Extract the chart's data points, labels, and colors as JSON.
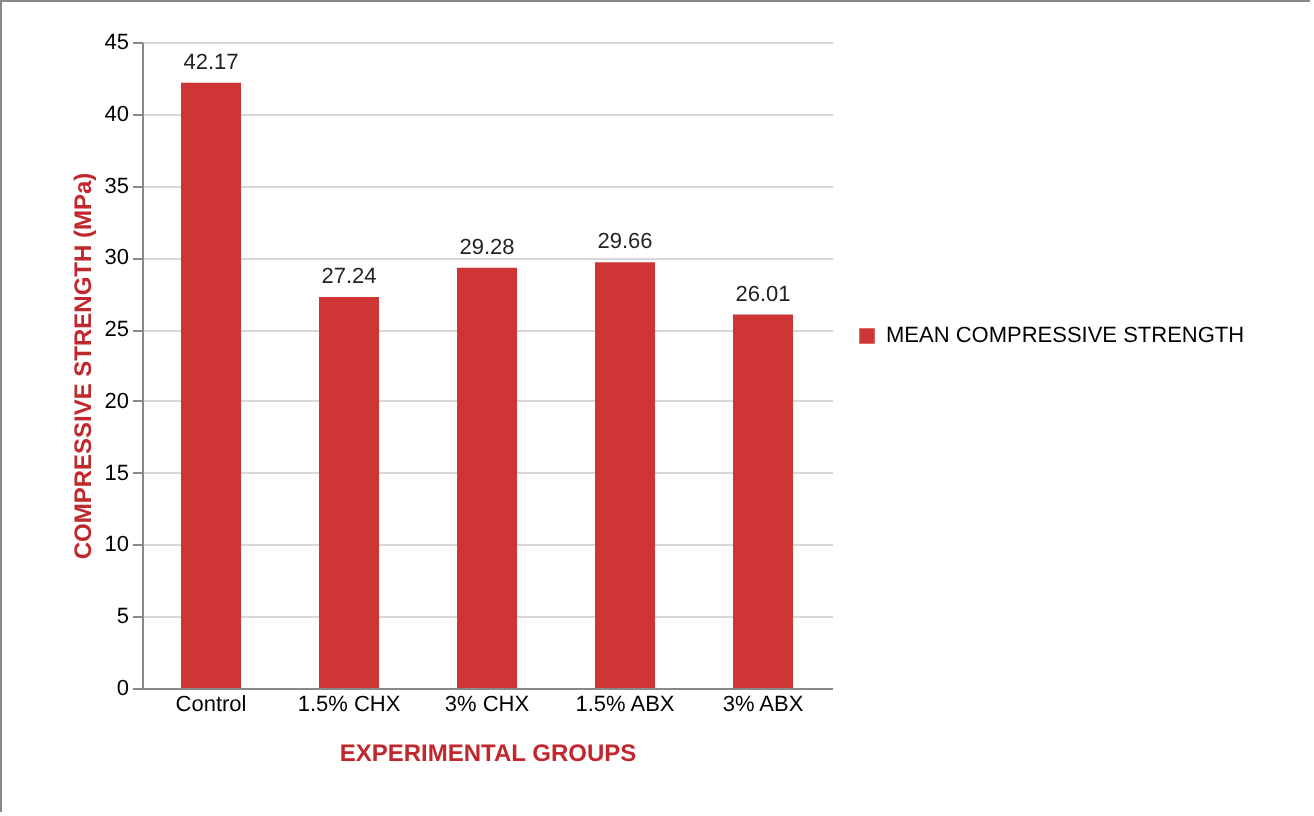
{
  "chart_data": {
    "type": "bar",
    "xlabel": "EXPERIMENTAL GROUPS",
    "ylabel": "COMPRESSIVE STRENGTH (MPa)",
    "categories": [
      "Control",
      "1.5% CHX",
      "3% CHX",
      "1.5% ABX",
      "3% ABX"
    ],
    "series": [
      {
        "name": "MEAN COMPRESSIVE STRENGTH",
        "color": "#d03535",
        "values": [
          42.17,
          27.24,
          29.28,
          29.66,
          26.01
        ]
      }
    ],
    "ylim": [
      0,
      45
    ],
    "yticks": [
      0,
      5,
      10,
      15,
      20,
      25,
      30,
      35,
      40,
      45
    ],
    "grid": "y",
    "legend": "right",
    "data_labels": true
  }
}
